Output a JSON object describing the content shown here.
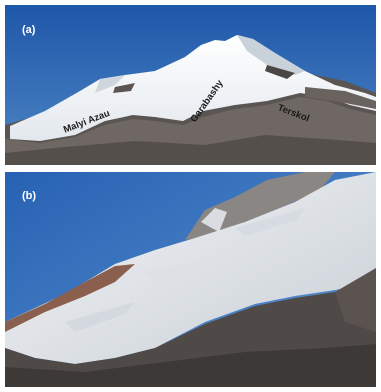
{
  "figure": {
    "panels": [
      {
        "label": "(a)",
        "glacier_labels": [
          "Malyi Azau",
          "Garabashy",
          "Terskol"
        ]
      },
      {
        "label": "(b)"
      }
    ]
  }
}
